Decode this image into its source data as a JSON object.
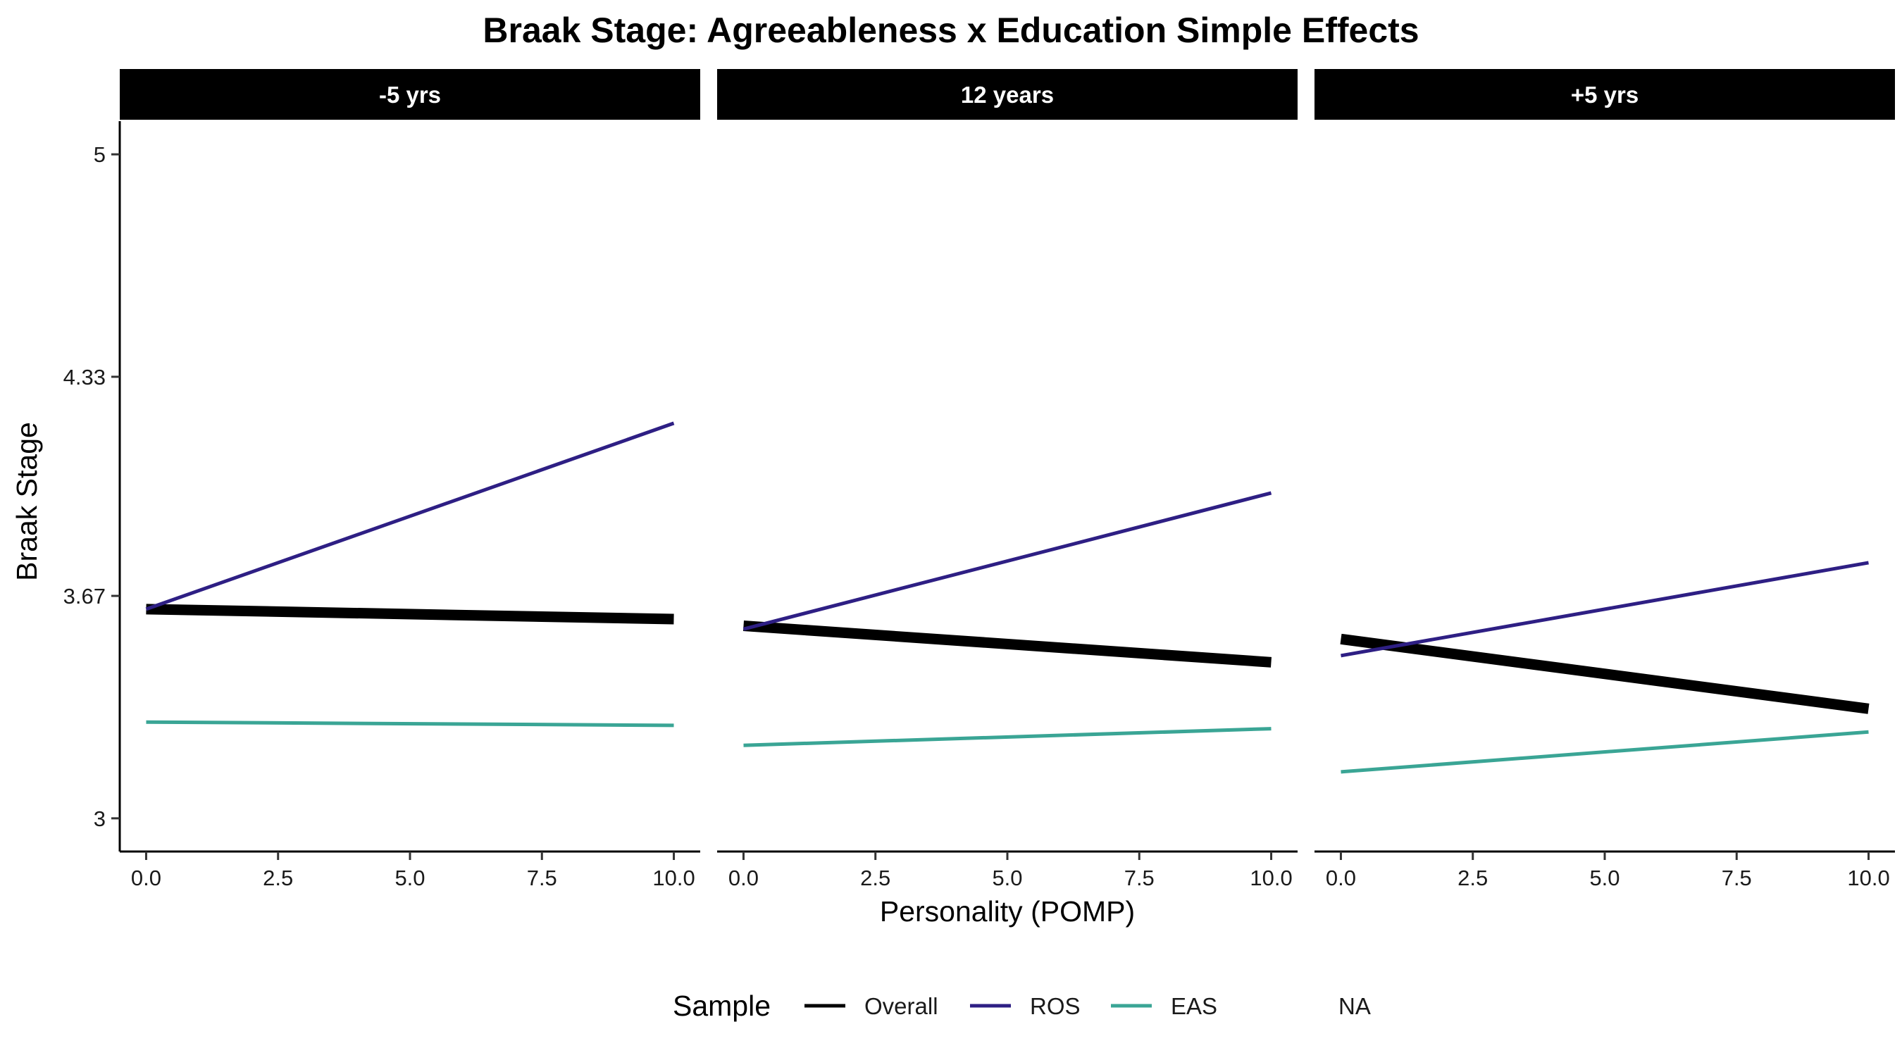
{
  "chart_data": {
    "type": "line",
    "title": "Braak Stage: Agreeableness x Education Simple Effects",
    "xlabel": "Personality (POMP)",
    "ylabel": "Braak Stage",
    "xlim": [
      -0.5,
      10.5
    ],
    "ylim": [
      2.9,
      5.1
    ],
    "x_ticks": [
      0,
      2.5,
      5,
      7.5,
      10
    ],
    "x_tick_labels": [
      "0.0",
      "2.5",
      "5.0",
      "7.5",
      "10.0"
    ],
    "y_ticks": [
      3,
      3.67,
      4.33,
      5
    ],
    "y_tick_labels": [
      "3",
      "3.67",
      "4.33",
      "5"
    ],
    "grid": false,
    "legend": {
      "title": "Sample",
      "position": "bottom",
      "items": [
        {
          "label": "Overall",
          "color": "#000000"
        },
        {
          "label": "ROS",
          "color": "#2e1f84"
        },
        {
          "label": "EAS",
          "color": "#3aa595"
        },
        {
          "label": "NA",
          "color": ""
        }
      ]
    },
    "facets": [
      {
        "label": "-5 yrs",
        "series": [
          {
            "name": "Overall",
            "x": [
              0,
              10
            ],
            "y": [
              3.63,
              3.6
            ]
          },
          {
            "name": "ROS",
            "x": [
              0,
              10
            ],
            "y": [
              3.63,
              4.19
            ]
          },
          {
            "name": "EAS",
            "x": [
              0,
              10
            ],
            "y": [
              3.29,
              3.28
            ]
          }
        ]
      },
      {
        "label": "12 years",
        "series": [
          {
            "name": "Overall",
            "x": [
              0,
              10
            ],
            "y": [
              3.58,
              3.47
            ]
          },
          {
            "name": "ROS",
            "x": [
              0,
              10
            ],
            "y": [
              3.57,
              3.98
            ]
          },
          {
            "name": "EAS",
            "x": [
              0,
              10
            ],
            "y": [
              3.22,
              3.27
            ]
          }
        ]
      },
      {
        "label": "+5 yrs",
        "series": [
          {
            "name": "Overall",
            "x": [
              0,
              10
            ],
            "y": [
              3.54,
              3.33
            ]
          },
          {
            "name": "ROS",
            "x": [
              0,
              10
            ],
            "y": [
              3.49,
              3.77
            ]
          },
          {
            "name": "EAS",
            "x": [
              0,
              10
            ],
            "y": [
              3.14,
              3.26
            ]
          }
        ]
      }
    ]
  }
}
